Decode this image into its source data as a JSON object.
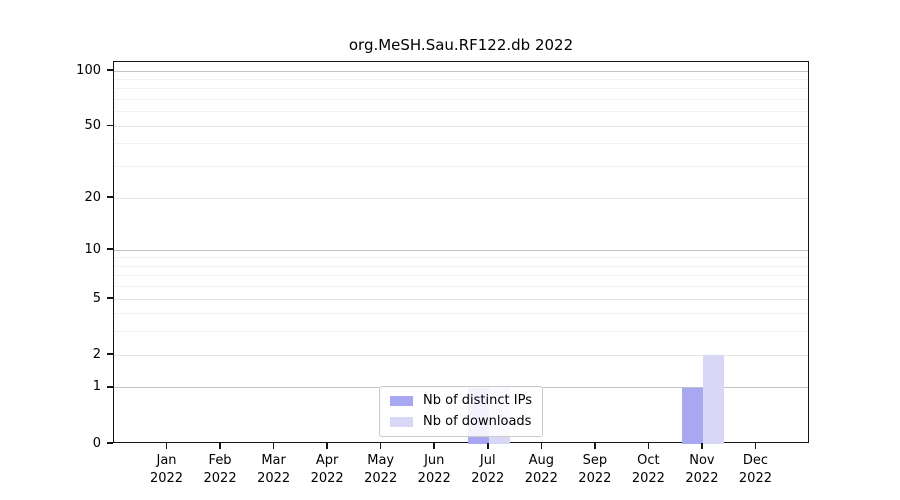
{
  "chart_data": {
    "type": "bar",
    "title": "org.MeSH.Sau.RF122.db 2022",
    "categories": [
      "Jan",
      "Feb",
      "Mar",
      "Apr",
      "May",
      "Jun",
      "Jul",
      "Aug",
      "Sep",
      "Oct",
      "Nov",
      "Dec"
    ],
    "year_label": "2022",
    "series": [
      {
        "name": "Nb of distinct IPs",
        "color": "#a7a7f2",
        "values": [
          0,
          0,
          0,
          0,
          0,
          0,
          1,
          0,
          0,
          0,
          1,
          0
        ]
      },
      {
        "name": "Nb of downloads",
        "color": "#d8d8f6",
        "values": [
          0,
          0,
          0,
          0,
          0,
          0,
          1,
          0,
          0,
          0,
          2,
          0
        ]
      }
    ],
    "scale": "log1p",
    "y_axis": {
      "major_ticks": [
        0,
        1,
        2,
        5,
        10,
        20,
        50,
        100
      ],
      "decade_gridlines": [
        1,
        10,
        100
      ],
      "mid_gridlines": [
        2,
        5,
        20,
        50
      ],
      "minor_gridlines": [
        3,
        4,
        6,
        7,
        8,
        9,
        30,
        40,
        60,
        70,
        80,
        90
      ],
      "ylim": [
        0,
        112
      ]
    },
    "grid": true,
    "legend_position": "bottom-center",
    "colors": {
      "grid_decade": "#c3c3c7",
      "grid_mid": "#e5e5e7",
      "grid_minor": "#f2f2f3",
      "spine": "#151515",
      "background": "#ffffff"
    }
  }
}
